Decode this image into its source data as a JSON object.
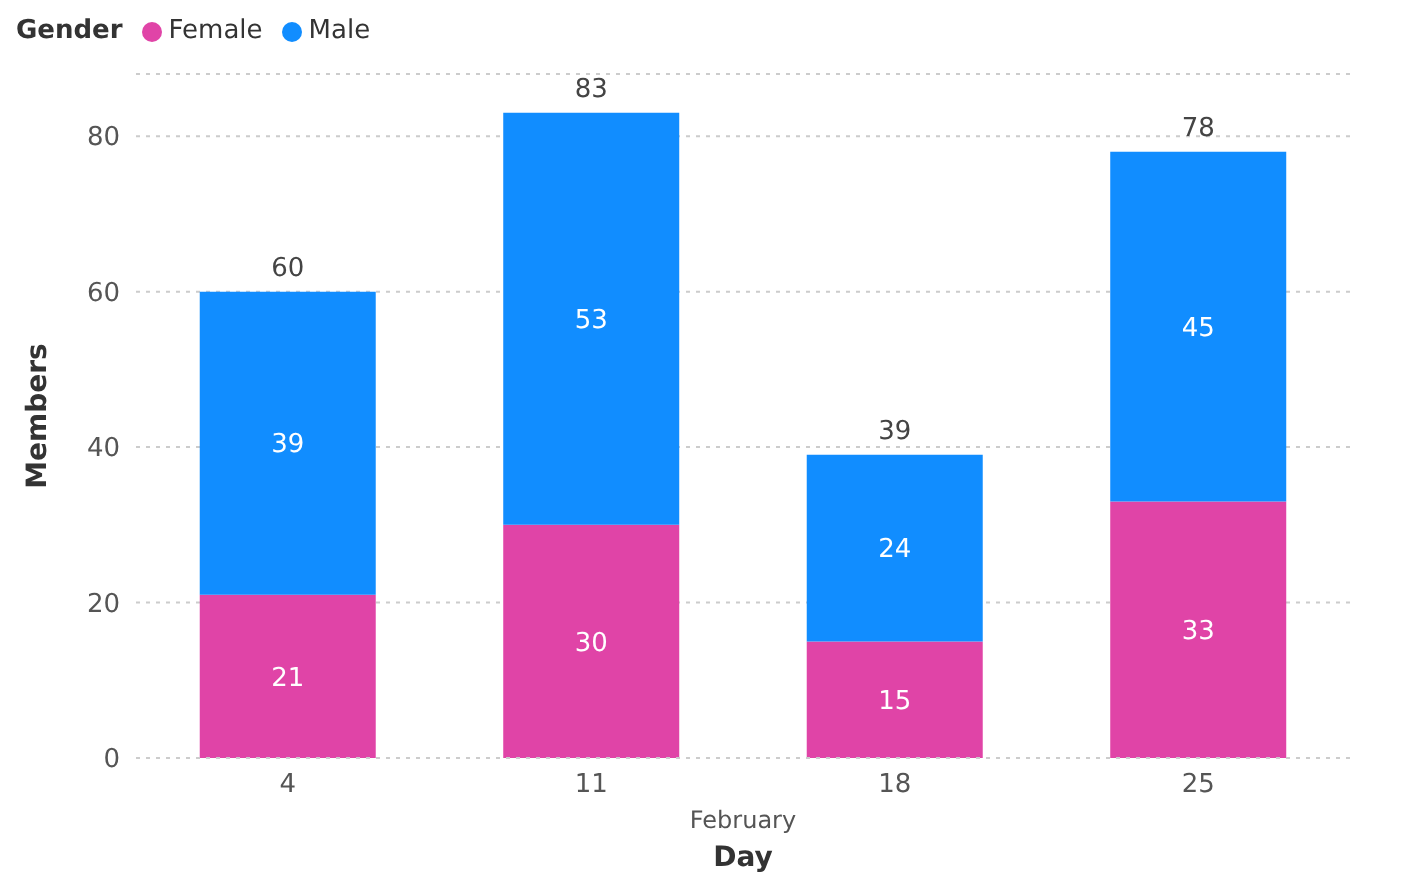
{
  "chart_data": {
    "type": "bar",
    "stacked": true,
    "xlabel": "Day",
    "ylabel": "Members",
    "legend_title": "Gender",
    "legend": "top left",
    "categories": [
      "4",
      "11",
      "18",
      "25"
    ],
    "series": [
      {
        "name": "Female",
        "color": "#e044a7",
        "values": [
          21,
          30,
          15,
          33
        ]
      },
      {
        "name": "Male",
        "color": "#118dff",
        "values": [
          39,
          53,
          24,
          45
        ]
      }
    ],
    "totals": [
      "60",
      "83",
      "39",
      "78"
    ],
    "data_labels": true,
    "ylim": [
      0,
      88
    ],
    "yticks": [
      0,
      20,
      40,
      60,
      80
    ],
    "grid": "y",
    "annotations": [
      "February"
    ]
  }
}
